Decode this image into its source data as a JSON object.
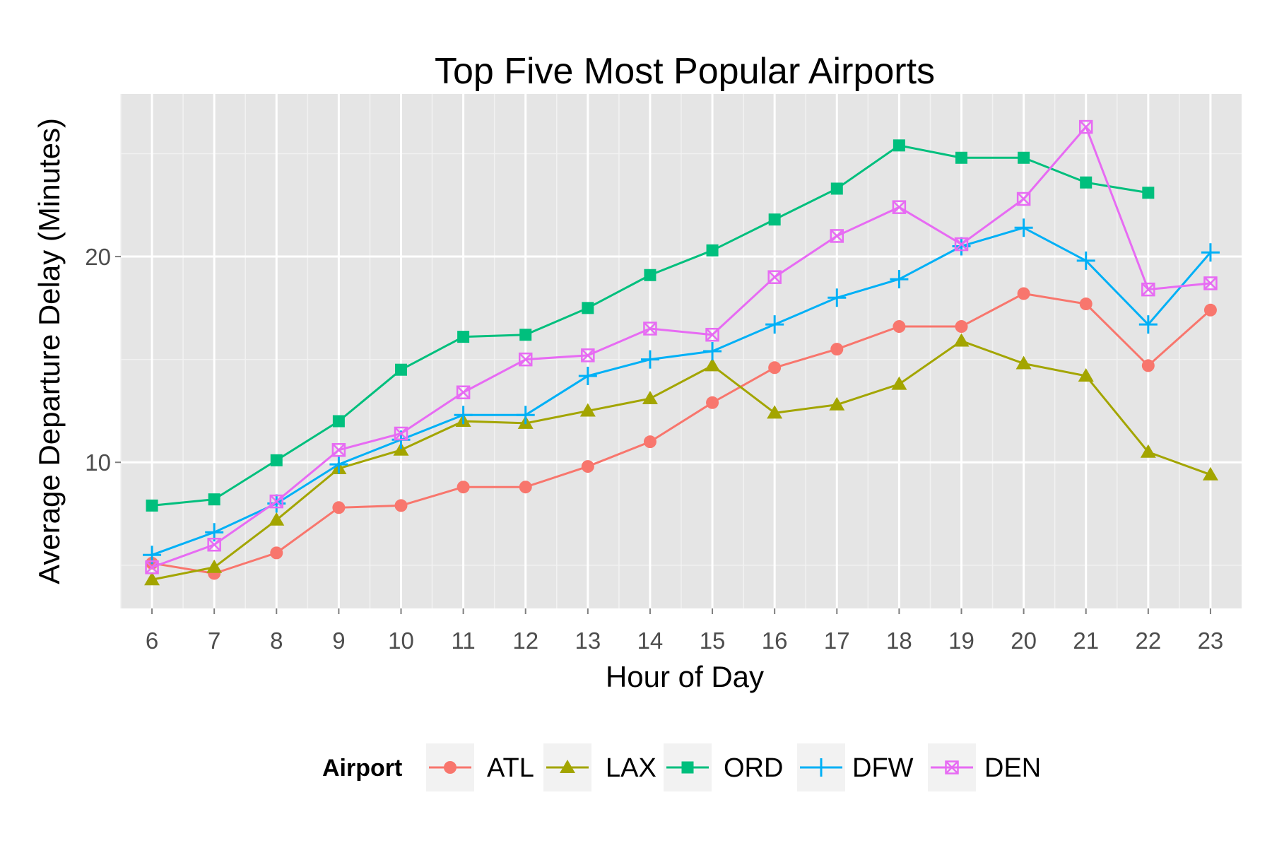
{
  "chart_data": {
    "type": "line",
    "title": "Top Five Most Popular Airports",
    "xlabel": "Hour of Day",
    "ylabel": "Average Departure Delay (Minutes)",
    "x": [
      6,
      7,
      8,
      9,
      10,
      11,
      12,
      13,
      14,
      15,
      16,
      17,
      18,
      19,
      20,
      21,
      22,
      23
    ],
    "xlim": [
      5.5,
      23.5
    ],
    "ylim": [
      2.9,
      27.9
    ],
    "y_ticks": [
      10,
      20
    ],
    "grid": true,
    "legend_title": "Airport",
    "legend_position": "bottom",
    "series": [
      {
        "name": "ATL",
        "color": "#F8766D",
        "marker": "circle",
        "values": [
          5.1,
          4.6,
          5.6,
          7.8,
          7.9,
          8.8,
          8.8,
          9.8,
          11.0,
          12.9,
          14.6,
          15.5,
          16.6,
          16.6,
          18.2,
          17.7,
          14.7,
          17.4
        ]
      },
      {
        "name": "LAX",
        "color": "#A3A500",
        "marker": "triangle",
        "values": [
          4.3,
          4.9,
          7.2,
          9.7,
          10.6,
          12.0,
          11.9,
          12.5,
          13.1,
          14.7,
          12.4,
          12.8,
          13.8,
          15.9,
          14.8,
          14.2,
          10.5,
          9.4
        ]
      },
      {
        "name": "ORD",
        "color": "#00BF7D",
        "marker": "square",
        "values": [
          7.9,
          8.2,
          10.1,
          12.0,
          14.5,
          16.1,
          16.2,
          17.5,
          19.1,
          20.3,
          21.8,
          23.3,
          25.4,
          24.8,
          24.8,
          23.6,
          23.1,
          null
        ]
      },
      {
        "name": "DFW",
        "color": "#00B0F6",
        "marker": "plus",
        "values": [
          5.5,
          6.6,
          8.0,
          9.9,
          11.1,
          12.3,
          12.3,
          14.2,
          15.0,
          15.4,
          16.7,
          18.0,
          18.9,
          20.5,
          21.4,
          19.8,
          16.7,
          20.2
        ]
      },
      {
        "name": "DEN",
        "color": "#E76BF3",
        "marker": "square-cross",
        "values": [
          4.9,
          6.0,
          8.1,
          10.6,
          11.4,
          13.4,
          15.0,
          15.2,
          16.5,
          16.2,
          19.0,
          21.0,
          22.4,
          20.6,
          22.8,
          26.3,
          18.4,
          18.7
        ]
      }
    ]
  }
}
